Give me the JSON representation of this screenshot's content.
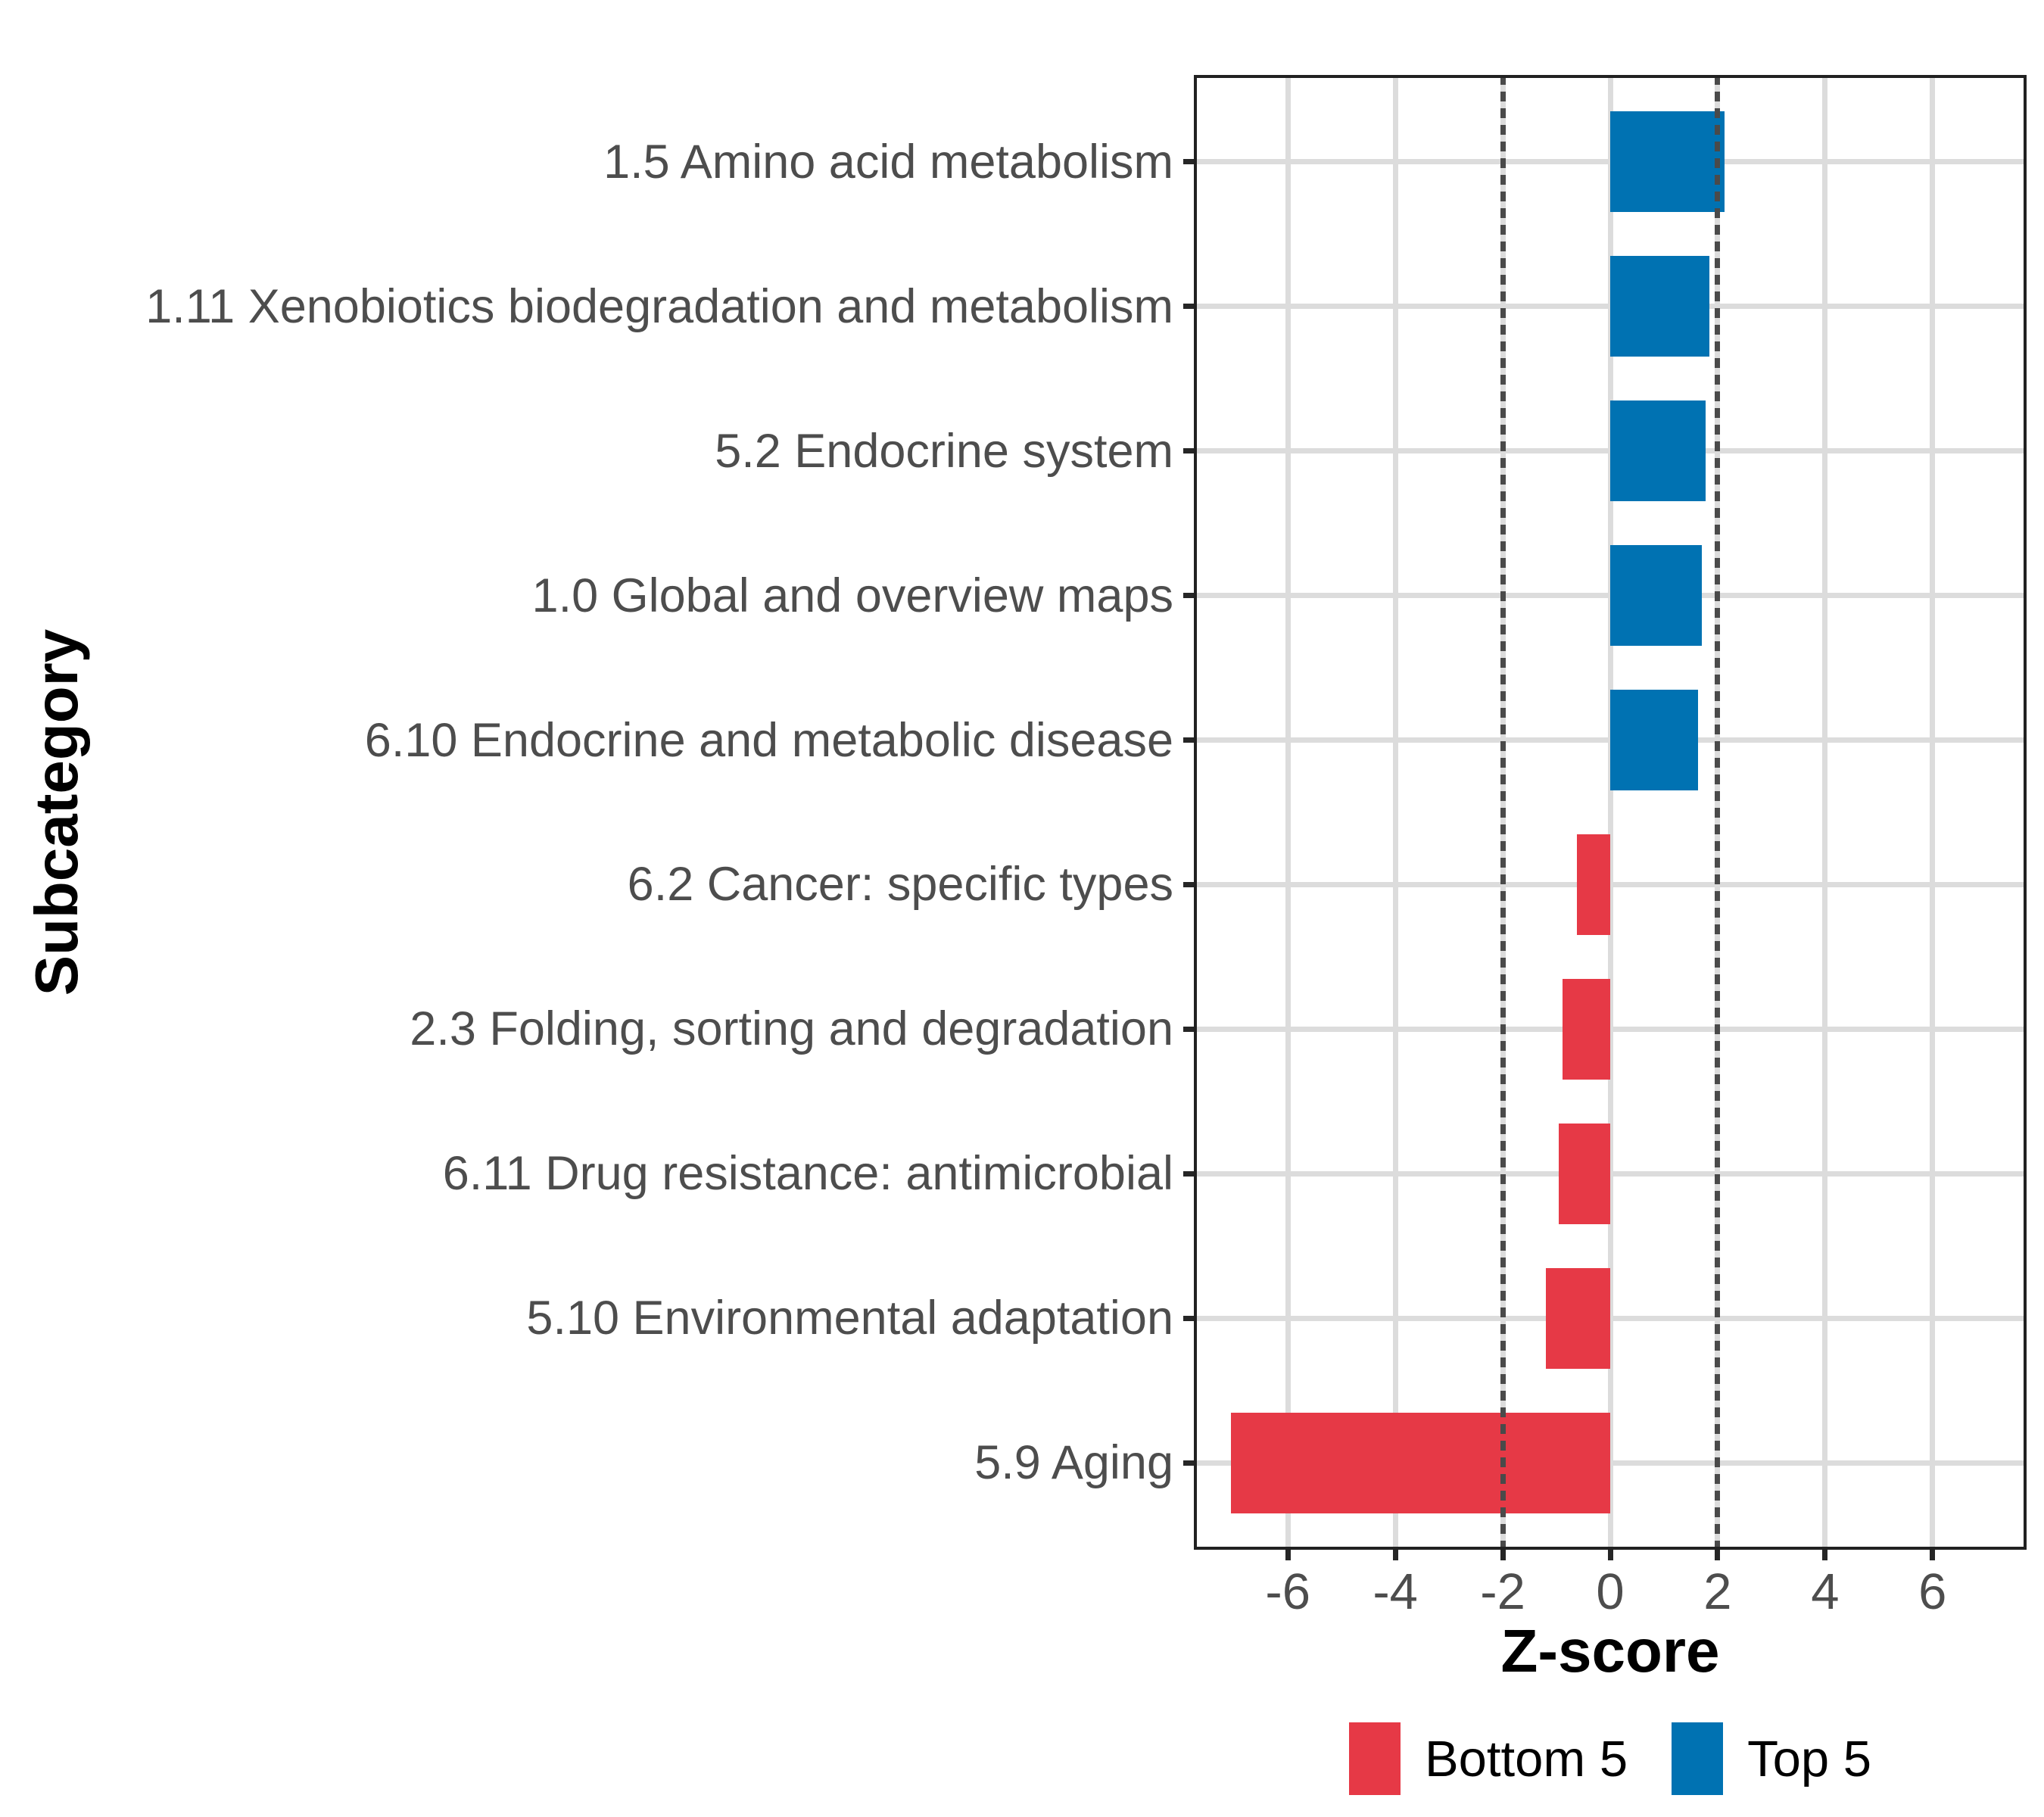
{
  "chart_data": {
    "type": "bar",
    "orientation": "horizontal",
    "title": "",
    "xlabel": "Z-score",
    "ylabel": "Subcategory",
    "categories": [
      "1.5 Amino acid metabolism",
      "1.11 Xenobiotics biodegradation and metabolism",
      "5.2 Endocrine system",
      "1.0 Global and overview maps",
      "6.10 Endocrine and metabolic disease",
      "6.2 Cancer: specific types",
      "2.3 Folding, sorting and degradation",
      "6.11 Drug resistance: antimicrobial",
      "5.10 Environmental adaptation",
      "5.9 Aging"
    ],
    "values": [
      2.13,
      1.85,
      1.77,
      1.7,
      1.64,
      -0.62,
      -0.89,
      -0.96,
      -1.2,
      -7.06
    ],
    "groups": [
      "Top 5",
      "Top 5",
      "Top 5",
      "Top 5",
      "Top 5",
      "Bottom 5",
      "Bottom 5",
      "Bottom 5",
      "Bottom 5",
      "Bottom 5"
    ],
    "colors": {
      "Top 5": "#0072B2",
      "Bottom 5": "#E63946"
    },
    "legend_entries": [
      {
        "label": "Bottom 5",
        "color": "#E63946"
      },
      {
        "label": "Top 5",
        "color": "#0072B2"
      }
    ],
    "x_ticks": [
      -6,
      -4,
      -2,
      0,
      2,
      4,
      6
    ],
    "x_tick_labels": [
      "-6",
      "-4",
      "-2",
      "0",
      "2",
      "4",
      "6"
    ],
    "xlim": [
      -7.75,
      7.75
    ],
    "reference_lines": [
      -2,
      2
    ],
    "grid": true,
    "legend_position": "bottom",
    "bar_width_fraction": 0.7
  }
}
